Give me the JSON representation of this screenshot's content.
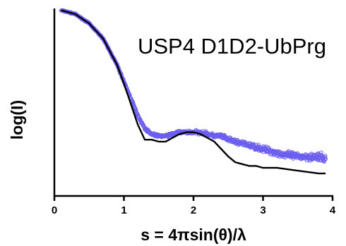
{
  "chart_data": {
    "type": "scatter",
    "title": "USP4 D1D2-UbPrg",
    "xlabel": "s = 4πsin(θ)/λ",
    "ylabel": "log(I)",
    "xlim": [
      0,
      4
    ],
    "ylim": [
      0,
      1
    ],
    "xticks": [
      0,
      1,
      2,
      3,
      4
    ],
    "grid": false,
    "colors": {
      "data_points": "#6b5ef0",
      "fit_line": "#000000",
      "axes": "#000000"
    },
    "series": [
      {
        "kind": "scatter",
        "x": [
          0.1,
          0.3,
          0.5,
          0.7,
          0.9,
          1.0,
          1.1,
          1.2,
          1.3,
          1.4,
          1.5,
          1.6,
          1.7,
          1.8,
          1.9,
          2.0,
          2.1,
          2.2,
          2.3,
          2.4,
          2.5,
          2.7,
          2.9,
          3.1,
          3.3,
          3.5,
          3.7,
          3.9
        ],
        "y": [
          0.99,
          0.97,
          0.92,
          0.84,
          0.7,
          0.61,
          0.52,
          0.43,
          0.36,
          0.33,
          0.32,
          0.32,
          0.33,
          0.34,
          0.34,
          0.34,
          0.34,
          0.33,
          0.32,
          0.32,
          0.3,
          0.28,
          0.26,
          0.24,
          0.22,
          0.21,
          0.21,
          0.2
        ]
      },
      {
        "kind": "line",
        "x": [
          0.1,
          0.3,
          0.5,
          0.7,
          0.9,
          1.0,
          1.1,
          1.2,
          1.3,
          1.4,
          1.5,
          1.6,
          1.7,
          1.8,
          1.9,
          2.0,
          2.1,
          2.2,
          2.3,
          2.4,
          2.5,
          2.6,
          2.7,
          2.8,
          2.9,
          3.0,
          3.2,
          3.4,
          3.6,
          3.8,
          3.9
        ],
        "y": [
          0.99,
          0.97,
          0.92,
          0.84,
          0.7,
          0.6,
          0.49,
          0.38,
          0.3,
          0.3,
          0.29,
          0.29,
          0.31,
          0.33,
          0.34,
          0.34,
          0.33,
          0.31,
          0.29,
          0.25,
          0.21,
          0.18,
          0.17,
          0.16,
          0.16,
          0.15,
          0.15,
          0.14,
          0.13,
          0.12,
          0.12
        ]
      }
    ]
  }
}
